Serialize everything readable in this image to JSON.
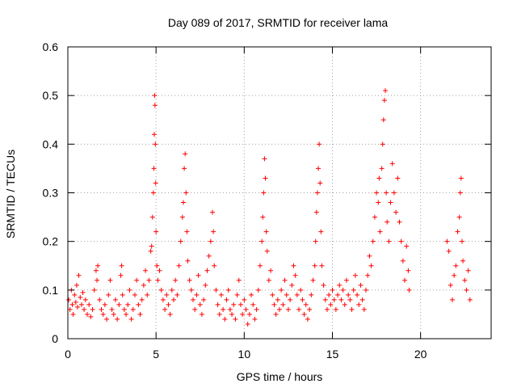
{
  "chart_data": {
    "type": "scatter",
    "title": "Day 089 of 2017, SRMTID for receiver lama",
    "xlabel": "GPS time / hours",
    "ylabel": "SRMTID / TECUs",
    "xlim": [
      0,
      24
    ],
    "ylim": [
      0,
      0.6
    ],
    "xticks": [
      {
        "value": 0,
        "label": "0"
      },
      {
        "value": 5,
        "label": "5"
      },
      {
        "value": 10,
        "label": "10"
      },
      {
        "value": 15,
        "label": "15"
      },
      {
        "value": 20,
        "label": "20"
      }
    ],
    "yticks": [
      {
        "value": 0,
        "label": "0"
      },
      {
        "value": 0.1,
        "label": "0.1"
      },
      {
        "value": 0.2,
        "label": "0.2"
      },
      {
        "value": 0.3,
        "label": "0.3"
      },
      {
        "value": 0.4,
        "label": "0.4"
      },
      {
        "value": 0.5,
        "label": "0.5"
      },
      {
        "value": 0.6,
        "label": "0.6"
      }
    ],
    "grid": true,
    "marker_color": "#ff0000",
    "marker": "plus",
    "series": [
      {
        "name": "SRMTID",
        "points": [
          [
            0.05,
            0.08
          ],
          [
            0.12,
            0.06
          ],
          [
            0.2,
            0.1
          ],
          [
            0.25,
            0.07
          ],
          [
            0.3,
            0.05
          ],
          [
            0.38,
            0.09
          ],
          [
            0.45,
            0.075
          ],
          [
            0.5,
            0.11
          ],
          [
            0.55,
            0.065
          ],
          [
            0.62,
            0.13
          ],
          [
            0.7,
            0.085
          ],
          [
            0.78,
            0.07
          ],
          [
            0.85,
            0.095
          ],
          [
            0.92,
            0.06
          ],
          [
            1.0,
            0.08
          ],
          [
            1.1,
            0.05
          ],
          [
            1.2,
            0.07
          ],
          [
            1.3,
            0.045
          ],
          [
            1.4,
            0.06
          ],
          [
            1.5,
            0.1
          ],
          [
            1.6,
            0.14
          ],
          [
            1.65,
            0.12
          ],
          [
            1.7,
            0.15
          ],
          [
            1.8,
            0.08
          ],
          [
            1.9,
            0.06
          ],
          [
            2.0,
            0.05
          ],
          [
            2.1,
            0.07
          ],
          [
            2.2,
            0.04
          ],
          [
            2.3,
            0.09
          ],
          [
            2.4,
            0.12
          ],
          [
            2.5,
            0.06
          ],
          [
            2.6,
            0.05
          ],
          [
            2.7,
            0.08
          ],
          [
            2.8,
            0.04
          ],
          [
            2.9,
            0.07
          ],
          [
            3.0,
            0.13
          ],
          [
            3.05,
            0.15
          ],
          [
            3.1,
            0.09
          ],
          [
            3.2,
            0.06
          ],
          [
            3.3,
            0.05
          ],
          [
            3.4,
            0.07
          ],
          [
            3.5,
            0.1
          ],
          [
            3.6,
            0.04
          ],
          [
            3.7,
            0.06
          ],
          [
            3.8,
            0.09
          ],
          [
            3.9,
            0.12
          ],
          [
            4.0,
            0.07
          ],
          [
            4.1,
            0.05
          ],
          [
            4.2,
            0.08
          ],
          [
            4.3,
            0.11
          ],
          [
            4.4,
            0.14
          ],
          [
            4.5,
            0.09
          ],
          [
            4.6,
            0.12
          ],
          [
            4.7,
            0.18
          ],
          [
            4.75,
            0.19
          ],
          [
            4.8,
            0.25
          ],
          [
            4.85,
            0.3
          ],
          [
            4.88,
            0.35
          ],
          [
            4.9,
            0.42
          ],
          [
            4.92,
            0.5
          ],
          [
            4.94,
            0.48
          ],
          [
            4.96,
            0.4
          ],
          [
            4.98,
            0.32
          ],
          [
            5.0,
            0.22
          ],
          [
            5.05,
            0.15
          ],
          [
            5.1,
            0.12
          ],
          [
            5.2,
            0.14
          ],
          [
            5.3,
            0.1
          ],
          [
            5.4,
            0.08
          ],
          [
            5.5,
            0.06
          ],
          [
            5.6,
            0.09
          ],
          [
            5.7,
            0.07
          ],
          [
            5.8,
            0.05
          ],
          [
            5.9,
            0.1
          ],
          [
            6.0,
            0.08
          ],
          [
            6.1,
            0.12
          ],
          [
            6.2,
            0.09
          ],
          [
            6.3,
            0.15
          ],
          [
            6.4,
            0.2
          ],
          [
            6.5,
            0.25
          ],
          [
            6.55,
            0.28
          ],
          [
            6.6,
            0.35
          ],
          [
            6.65,
            0.38
          ],
          [
            6.7,
            0.3
          ],
          [
            6.75,
            0.22
          ],
          [
            6.8,
            0.16
          ],
          [
            6.9,
            0.12
          ],
          [
            7.0,
            0.1
          ],
          [
            7.1,
            0.08
          ],
          [
            7.2,
            0.06
          ],
          [
            7.3,
            0.09
          ],
          [
            7.4,
            0.13
          ],
          [
            7.5,
            0.07
          ],
          [
            7.6,
            0.05
          ],
          [
            7.7,
            0.08
          ],
          [
            7.8,
            0.11
          ],
          [
            7.9,
            0.14
          ],
          [
            8.0,
            0.17
          ],
          [
            8.1,
            0.2
          ],
          [
            8.2,
            0.26
          ],
          [
            8.25,
            0.22
          ],
          [
            8.3,
            0.15
          ],
          [
            8.4,
            0.1
          ],
          [
            8.5,
            0.07
          ],
          [
            8.6,
            0.05
          ],
          [
            8.7,
            0.09
          ],
          [
            8.8,
            0.06
          ],
          [
            8.9,
            0.04
          ],
          [
            9.0,
            0.08
          ],
          [
            9.1,
            0.1
          ],
          [
            9.2,
            0.06
          ],
          [
            9.3,
            0.05
          ],
          [
            9.4,
            0.07
          ],
          [
            9.5,
            0.04
          ],
          [
            9.6,
            0.09
          ],
          [
            9.7,
            0.12
          ],
          [
            9.8,
            0.07
          ],
          [
            9.9,
            0.05
          ],
          [
            10.0,
            0.08
          ],
          [
            10.1,
            0.06
          ],
          [
            10.2,
            0.03
          ],
          [
            10.3,
            0.05
          ],
          [
            10.4,
            0.09
          ],
          [
            10.5,
            0.07
          ],
          [
            10.6,
            0.04
          ],
          [
            10.7,
            0.06
          ],
          [
            10.8,
            0.1
          ],
          [
            10.9,
            0.15
          ],
          [
            11.0,
            0.2
          ],
          [
            11.05,
            0.25
          ],
          [
            11.1,
            0.3
          ],
          [
            11.15,
            0.37
          ],
          [
            11.2,
            0.33
          ],
          [
            11.25,
            0.22
          ],
          [
            11.3,
            0.18
          ],
          [
            11.4,
            0.12
          ],
          [
            11.5,
            0.14
          ],
          [
            11.6,
            0.09
          ],
          [
            11.7,
            0.07
          ],
          [
            11.8,
            0.05
          ],
          [
            11.9,
            0.08
          ],
          [
            12.0,
            0.06
          ],
          [
            12.1,
            0.1
          ],
          [
            12.2,
            0.07
          ],
          [
            12.3,
            0.12
          ],
          [
            12.4,
            0.09
          ],
          [
            12.5,
            0.06
          ],
          [
            12.6,
            0.08
          ],
          [
            12.7,
            0.11
          ],
          [
            12.8,
            0.15
          ],
          [
            12.9,
            0.13
          ],
          [
            13.0,
            0.09
          ],
          [
            13.1,
            0.06
          ],
          [
            13.2,
            0.1
          ],
          [
            13.3,
            0.08
          ],
          [
            13.4,
            0.05
          ],
          [
            13.5,
            0.07
          ],
          [
            13.6,
            0.04
          ],
          [
            13.7,
            0.06
          ],
          [
            13.8,
            0.09
          ],
          [
            13.9,
            0.12
          ],
          [
            14.0,
            0.15
          ],
          [
            14.05,
            0.2
          ],
          [
            14.1,
            0.26
          ],
          [
            14.15,
            0.3
          ],
          [
            14.2,
            0.35
          ],
          [
            14.25,
            0.4
          ],
          [
            14.3,
            0.32
          ],
          [
            14.35,
            0.22
          ],
          [
            14.4,
            0.15
          ],
          [
            14.5,
            0.11
          ],
          [
            14.6,
            0.08
          ],
          [
            14.7,
            0.06
          ],
          [
            14.8,
            0.09
          ],
          [
            14.9,
            0.07
          ],
          [
            15.0,
            0.1
          ],
          [
            15.1,
            0.08
          ],
          [
            15.2,
            0.06
          ],
          [
            15.3,
            0.09
          ],
          [
            15.4,
            0.11
          ],
          [
            15.5,
            0.08
          ],
          [
            15.6,
            0.1
          ],
          [
            15.7,
            0.07
          ],
          [
            15.8,
            0.12
          ],
          [
            15.9,
            0.09
          ],
          [
            16.0,
            0.08
          ],
          [
            16.1,
            0.06
          ],
          [
            16.2,
            0.1
          ],
          [
            16.3,
            0.13
          ],
          [
            16.4,
            0.09
          ],
          [
            16.5,
            0.07
          ],
          [
            16.6,
            0.11
          ],
          [
            16.7,
            0.08
          ],
          [
            16.8,
            0.06
          ],
          [
            16.9,
            0.1
          ],
          [
            17.0,
            0.13
          ],
          [
            17.1,
            0.17
          ],
          [
            17.2,
            0.15
          ],
          [
            17.3,
            0.2
          ],
          [
            17.4,
            0.25
          ],
          [
            17.5,
            0.3
          ],
          [
            17.6,
            0.28
          ],
          [
            17.65,
            0.33
          ],
          [
            17.7,
            0.22
          ],
          [
            17.8,
            0.35
          ],
          [
            17.85,
            0.4
          ],
          [
            17.9,
            0.45
          ],
          [
            17.95,
            0.49
          ],
          [
            18.0,
            0.51
          ],
          [
            18.05,
            0.3
          ],
          [
            18.1,
            0.24
          ],
          [
            18.2,
            0.2
          ],
          [
            18.3,
            0.28
          ],
          [
            18.4,
            0.36
          ],
          [
            18.5,
            0.3
          ],
          [
            18.6,
            0.26
          ],
          [
            18.7,
            0.33
          ],
          [
            18.8,
            0.24
          ],
          [
            18.9,
            0.2
          ],
          [
            19.0,
            0.16
          ],
          [
            19.1,
            0.12
          ],
          [
            19.2,
            0.19
          ],
          [
            19.3,
            0.14
          ],
          [
            19.35,
            0.1
          ],
          [
            21.5,
            0.2
          ],
          [
            21.6,
            0.18
          ],
          [
            21.7,
            0.11
          ],
          [
            21.8,
            0.08
          ],
          [
            21.9,
            0.13
          ],
          [
            22.0,
            0.15
          ],
          [
            22.1,
            0.22
          ],
          [
            22.2,
            0.25
          ],
          [
            22.25,
            0.3
          ],
          [
            22.3,
            0.33
          ],
          [
            22.35,
            0.2
          ],
          [
            22.4,
            0.16
          ],
          [
            22.5,
            0.12
          ],
          [
            22.6,
            0.1
          ],
          [
            22.7,
            0.14
          ],
          [
            22.8,
            0.08
          ]
        ]
      }
    ]
  }
}
